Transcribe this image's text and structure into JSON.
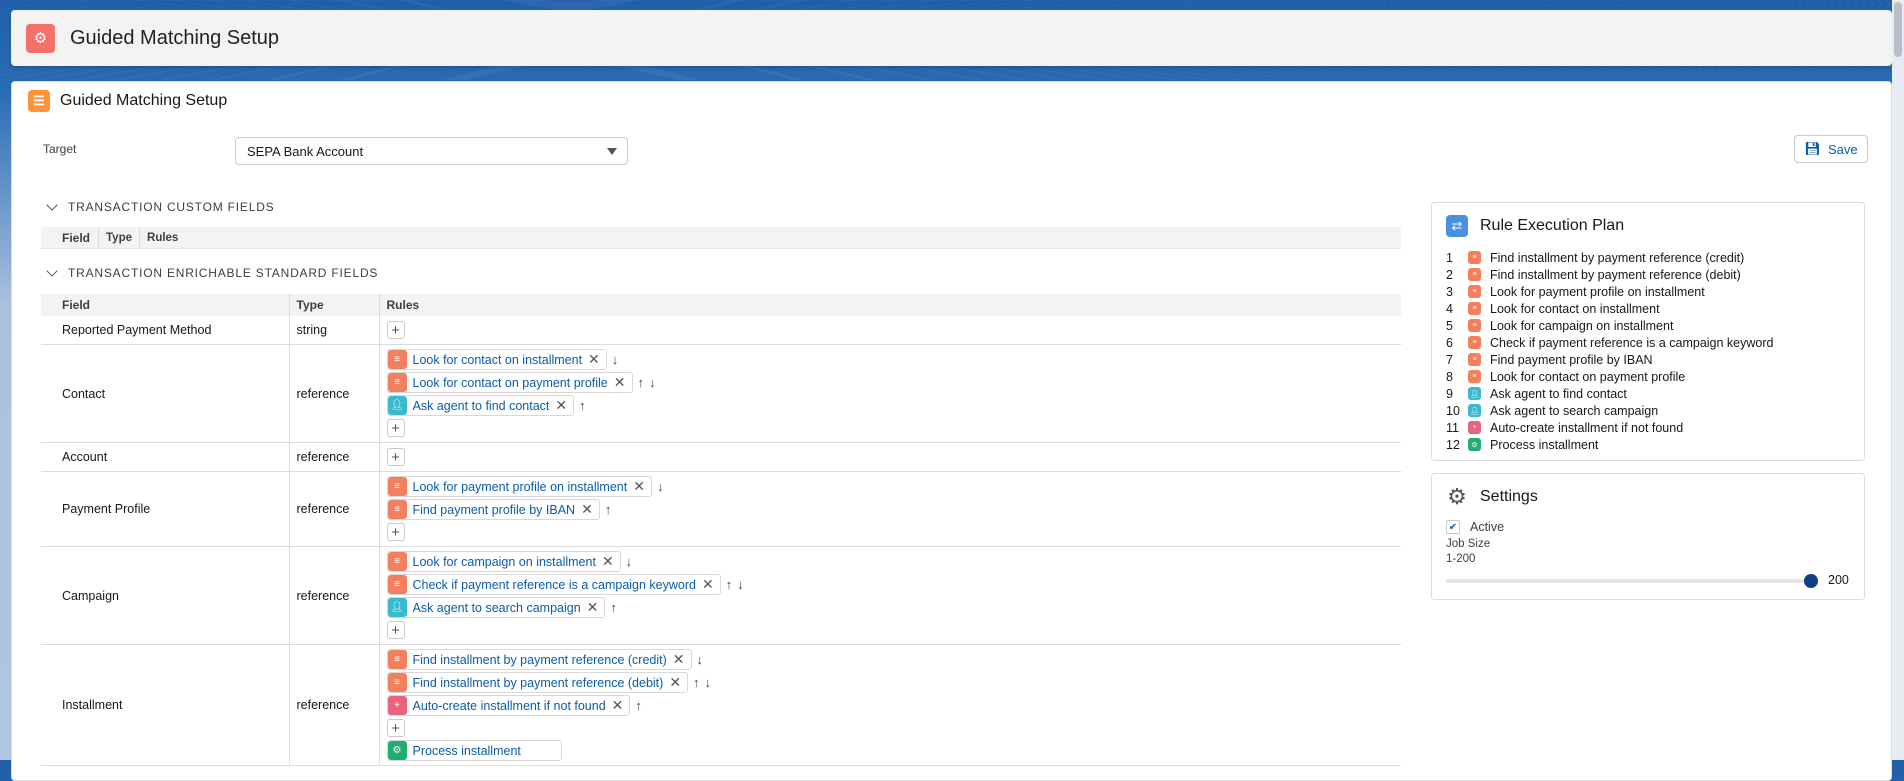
{
  "app": {
    "title": "Guided Matching Setup"
  },
  "card": {
    "title": "Guided Matching Setup"
  },
  "target": {
    "label": "Target",
    "value": "SEPA Bank Account"
  },
  "save_label": "Save",
  "sections": {
    "custom": "TRANSACTION CUSTOM FIELDS",
    "standard": "TRANSACTION ENRICHABLE STANDARD FIELDS"
  },
  "columns": {
    "field": "Field",
    "type": "Type",
    "rules": "Rules"
  },
  "colors": {
    "database": "#f2805e",
    "agent": "#3cb9cf",
    "create": "#e8637f",
    "process": "#1fae6f",
    "link": "#0b5cab"
  },
  "rows": [
    {
      "field": "Reported Payment Method",
      "type": "string",
      "rules": [],
      "after": []
    },
    {
      "field": "Contact",
      "type": "reference",
      "rules": [
        {
          "label": "Look for contact on installment",
          "icon": "database",
          "arrows": [
            "down"
          ]
        },
        {
          "label": "Look for contact on payment profile",
          "icon": "database",
          "arrows": [
            "up",
            "down"
          ]
        },
        {
          "label": "Ask agent to find contact",
          "icon": "agent",
          "arrows": [
            "up"
          ]
        }
      ],
      "after": []
    },
    {
      "field": "Account",
      "type": "reference",
      "rules": [],
      "after": []
    },
    {
      "field": "Payment Profile",
      "type": "reference",
      "rules": [
        {
          "label": "Look for payment profile on installment",
          "icon": "database",
          "arrows": [
            "down"
          ]
        },
        {
          "label": "Find payment profile by IBAN",
          "icon": "database",
          "arrows": [
            "up"
          ]
        }
      ],
      "after": []
    },
    {
      "field": "Campaign",
      "type": "reference",
      "rules": [
        {
          "label": "Look for campaign on installment",
          "icon": "database",
          "arrows": [
            "down"
          ]
        },
        {
          "label": "Check if payment reference is a campaign keyword",
          "icon": "database",
          "arrows": [
            "up",
            "down"
          ]
        },
        {
          "label": "Ask agent to search campaign",
          "icon": "agent",
          "arrows": [
            "up"
          ]
        }
      ],
      "after": []
    },
    {
      "field": "Installment",
      "type": "reference",
      "rules": [
        {
          "label": "Find installment by payment reference (credit)",
          "icon": "database",
          "arrows": [
            "down"
          ]
        },
        {
          "label": "Find installment by payment reference (debit)",
          "icon": "database",
          "arrows": [
            "up",
            "down"
          ]
        },
        {
          "label": "Auto-create installment if not found",
          "icon": "create",
          "arrows": [
            "up"
          ]
        }
      ],
      "after": [
        {
          "label": "Process installment",
          "icon": "process"
        }
      ]
    }
  ],
  "plan": {
    "title": "Rule Execution Plan",
    "items": [
      {
        "n": "1",
        "label": "Find installment by payment reference (credit)",
        "icon": "database"
      },
      {
        "n": "2",
        "label": "Find installment by payment reference (debit)",
        "icon": "database"
      },
      {
        "n": "3",
        "label": "Look for payment profile on installment",
        "icon": "database"
      },
      {
        "n": "4",
        "label": "Look for contact on installment",
        "icon": "database"
      },
      {
        "n": "5",
        "label": "Look for campaign on installment",
        "icon": "database"
      },
      {
        "n": "6",
        "label": "Check if payment reference is a campaign keyword",
        "icon": "database"
      },
      {
        "n": "7",
        "label": "Find payment profile by IBAN",
        "icon": "database"
      },
      {
        "n": "8",
        "label": "Look for contact on payment profile",
        "icon": "database"
      },
      {
        "n": "9",
        "label": "Ask agent to find contact",
        "icon": "agent"
      },
      {
        "n": "10",
        "label": "Ask agent to search campaign",
        "icon": "agent"
      },
      {
        "n": "11",
        "label": "Auto-create installment if not found",
        "icon": "create"
      },
      {
        "n": "12",
        "label": "Process installment",
        "icon": "process"
      }
    ]
  },
  "settings": {
    "title": "Settings",
    "active_label": "Active",
    "active": true,
    "job_size_label": "Job Size",
    "range": "1-200",
    "min": 1,
    "max": 200,
    "value": "200"
  }
}
